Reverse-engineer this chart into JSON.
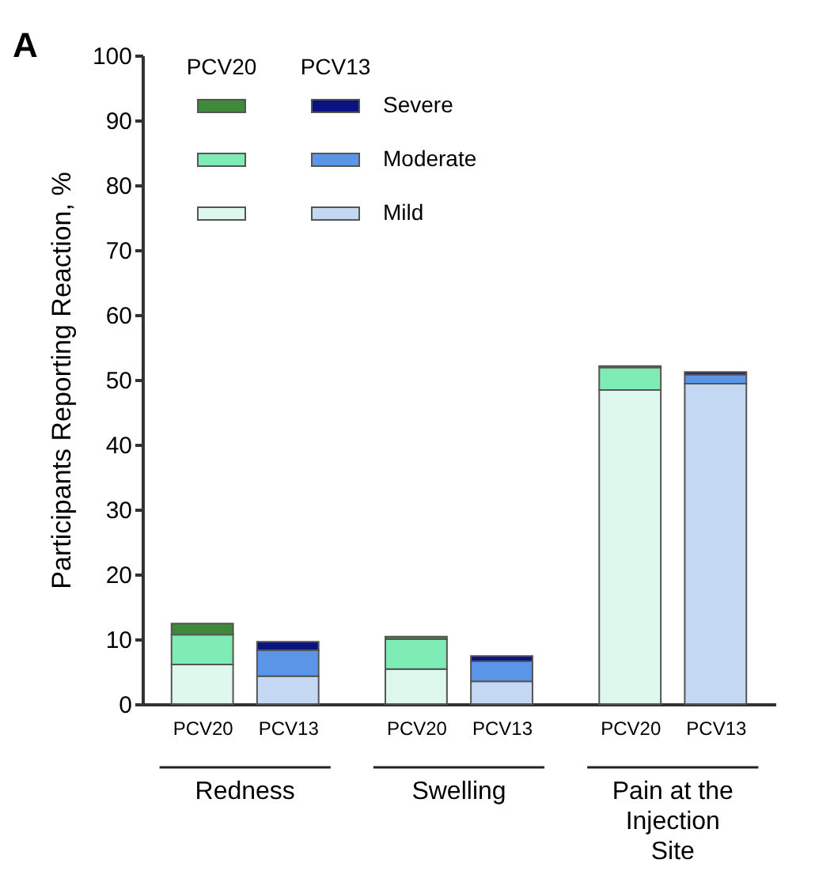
{
  "chart_data": {
    "type": "bar",
    "stacked": true,
    "ylabel": "Participants Reporting Reaction, %",
    "categories": [
      "PCV20",
      "PCV13",
      "PCV20",
      "PCV13",
      "PCV20",
      "PCV13"
    ],
    "series": [
      {
        "name": "Mild",
        "colors": [
          "#dff8ee",
          "#c4d8f4",
          "#dff8ee",
          "#c4d8f4",
          "#dff8ee",
          "#c4d8f4"
        ],
        "values": [
          6.1,
          4.3,
          5.4,
          3.5,
          48.4,
          49.4
        ]
      },
      {
        "name": "Moderate",
        "colors": [
          "#7eecb4",
          "#5b95e8",
          "#7eecb4",
          "#5b95e8",
          "#7eecb4",
          "#5b95e8"
        ],
        "values": [
          4.6,
          4.0,
          4.6,
          3.1,
          3.5,
          1.4
        ]
      },
      {
        "name": "Severe",
        "colors": [
          "#3f8a3a",
          "#0a1380",
          "#3f8a3a",
          "#0a1380",
          "#3f8a3a",
          "#0a1380"
        ],
        "values": [
          1.7,
          1.3,
          0.4,
          0.8,
          0.2,
          0.4
        ]
      }
    ],
    "ylim": [
      0,
      100
    ],
    "yticks": [
      0,
      10,
      20,
      30,
      40,
      50,
      60,
      70,
      80,
      90,
      100
    ],
    "annotations": [
      "A",
      "Redness",
      "Swelling",
      "Pain at the Injection Site"
    ],
    "grid": false,
    "legend": "top left"
  }
}
